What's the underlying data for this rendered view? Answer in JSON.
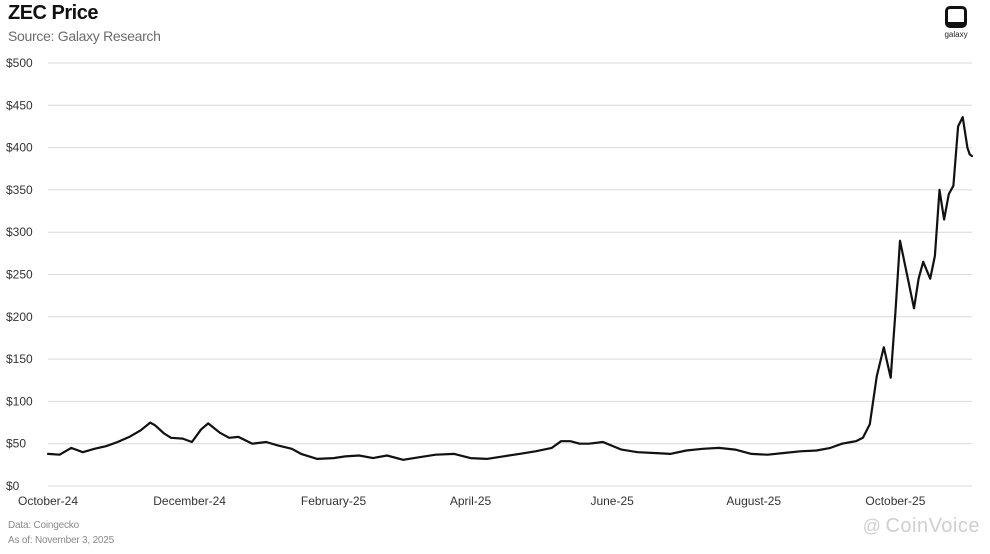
{
  "header": {
    "title": "ZEC Price",
    "subtitle": "Source: Galaxy Research"
  },
  "logo": {
    "text": "galaxy"
  },
  "footnotes": {
    "data_source": "Data: Coingecko",
    "as_of": "As of: November 3, 2025"
  },
  "watermark": {
    "text": "CoinVoice",
    "prefix": "@"
  },
  "chart_data": {
    "type": "line",
    "title": "ZEC Price",
    "subtitle": "Source: Galaxy Research",
    "xlabel": "",
    "ylabel": "",
    "ylim": [
      0,
      500
    ],
    "xlim": [
      "2024-10-01",
      "2025-11-03"
    ],
    "grid": true,
    "y_ticks": [
      0,
      50,
      100,
      150,
      200,
      250,
      300,
      350,
      400,
      450,
      500
    ],
    "y_tick_labels": [
      "$0",
      "$50",
      "$100",
      "$150",
      "$200",
      "$250",
      "$300",
      "$350",
      "$400",
      "$450",
      "$500"
    ],
    "x_ticks": [
      "2024-10-01",
      "2024-12-01",
      "2025-02-01",
      "2025-04-01",
      "2025-06-01",
      "2025-08-01",
      "2025-10-01"
    ],
    "x_tick_labels": [
      "October-24",
      "December-24",
      "February-25",
      "April-25",
      "June-25",
      "August-25",
      "October-25"
    ],
    "line_color": "#111111",
    "series": [
      {
        "x": [
          "2024-10-01",
          "2024-10-06",
          "2024-10-11",
          "2024-10-16",
          "2024-10-21",
          "2024-10-26",
          "2024-10-31",
          "2024-11-05",
          "2024-11-10",
          "2024-11-14",
          "2024-11-16",
          "2024-11-20",
          "2024-11-23",
          "2024-11-28",
          "2024-12-02",
          "2024-12-06",
          "2024-12-09",
          "2024-12-14",
          "2024-12-18",
          "2024-12-22",
          "2024-12-28",
          "2025-01-03",
          "2025-01-08",
          "2025-01-14",
          "2025-01-18",
          "2025-01-25",
          "2025-02-01",
          "2025-02-06",
          "2025-02-12",
          "2025-02-18",
          "2025-02-24",
          "2025-03-03",
          "2025-03-10",
          "2025-03-17",
          "2025-03-25",
          "2025-04-01",
          "2025-04-08",
          "2025-04-15",
          "2025-04-22",
          "2025-04-29",
          "2025-05-06",
          "2025-05-10",
          "2025-05-14",
          "2025-05-18",
          "2025-05-22",
          "2025-05-28",
          "2025-06-05",
          "2025-06-12",
          "2025-06-19",
          "2025-06-26",
          "2025-07-03",
          "2025-07-10",
          "2025-07-17",
          "2025-07-24",
          "2025-07-31",
          "2025-08-07",
          "2025-08-14",
          "2025-08-21",
          "2025-08-28",
          "2025-09-03",
          "2025-09-08",
          "2025-09-12",
          "2025-09-14",
          "2025-09-17",
          "2025-09-20",
          "2025-09-23",
          "2025-09-26",
          "2025-09-29",
          "2025-10-01",
          "2025-10-03",
          "2025-10-06",
          "2025-10-09",
          "2025-10-11",
          "2025-10-13",
          "2025-10-16",
          "2025-10-18",
          "2025-10-20",
          "2025-10-22",
          "2025-10-24",
          "2025-10-26",
          "2025-10-28",
          "2025-10-30",
          "2025-11-01",
          "2025-11-02",
          "2025-11-03"
        ],
        "values": [
          38,
          37,
          45,
          40,
          44,
          47,
          52,
          58,
          66,
          75,
          72,
          62,
          57,
          56,
          52,
          67,
          74,
          63,
          57,
          58,
          50,
          52,
          48,
          44,
          38,
          32,
          33,
          35,
          36,
          33,
          36,
          31,
          34,
          37,
          38,
          33,
          32,
          35,
          38,
          41,
          45,
          53,
          53,
          50,
          50,
          52,
          43,
          40,
          39,
          38,
          42,
          44,
          45,
          43,
          38,
          37,
          39,
          41,
          42,
          45,
          50,
          52,
          53,
          57,
          73,
          130,
          164,
          128,
          205,
          290,
          250,
          210,
          245,
          265,
          245,
          272,
          350,
          315,
          345,
          355,
          425,
          436,
          400,
          392,
          390
        ]
      }
    ]
  }
}
